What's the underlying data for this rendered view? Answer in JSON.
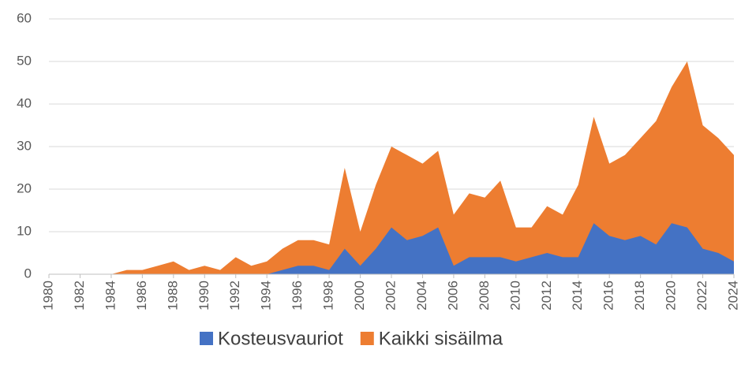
{
  "chart_data": {
    "type": "area",
    "x": [
      1980,
      1981,
      1982,
      1983,
      1984,
      1985,
      1986,
      1987,
      1988,
      1989,
      1990,
      1991,
      1992,
      1993,
      1994,
      1995,
      1996,
      1997,
      1998,
      1999,
      2000,
      2001,
      2002,
      2003,
      2004,
      2005,
      2006,
      2007,
      2008,
      2009,
      2010,
      2011,
      2012,
      2013,
      2014,
      2015,
      2016,
      2017,
      2018,
      2019,
      2020,
      2021,
      2022,
      2023,
      2024
    ],
    "series": [
      {
        "name": "Kaikki sisäilma",
        "color": "#ed7d31",
        "values": [
          0,
          0,
          0,
          0,
          0,
          1,
          1,
          2,
          3,
          1,
          2,
          1,
          4,
          2,
          3,
          6,
          8,
          8,
          7,
          25,
          10,
          21,
          30,
          28,
          26,
          29,
          14,
          19,
          18,
          22,
          11,
          11,
          16,
          14,
          21,
          37,
          26,
          28,
          32,
          36,
          44,
          50,
          35,
          32,
          28
        ]
      },
      {
        "name": "Kosteusvauriot",
        "color": "#4472c4",
        "values": [
          0,
          0,
          0,
          0,
          0,
          0,
          0,
          0,
          0,
          0,
          0,
          0,
          0,
          0,
          0,
          1,
          2,
          2,
          1,
          6,
          2,
          6,
          11,
          8,
          9,
          11,
          2,
          4,
          4,
          4,
          3,
          4,
          5,
          4,
          4,
          12,
          9,
          8,
          9,
          7,
          12,
          11,
          6,
          5,
          3
        ]
      }
    ],
    "xlim": [
      1980,
      2024
    ],
    "xticks": [
      1980,
      1982,
      1984,
      1986,
      1988,
      1990,
      1992,
      1994,
      1996,
      1998,
      2000,
      2002,
      2004,
      2006,
      2008,
      2010,
      2012,
      2014,
      2016,
      2018,
      2020,
      2022,
      2024
    ],
    "ylim": [
      0,
      60
    ],
    "yticks": [
      0,
      10,
      20,
      30,
      40,
      50,
      60
    ],
    "grid": true,
    "legend": "bottom"
  }
}
